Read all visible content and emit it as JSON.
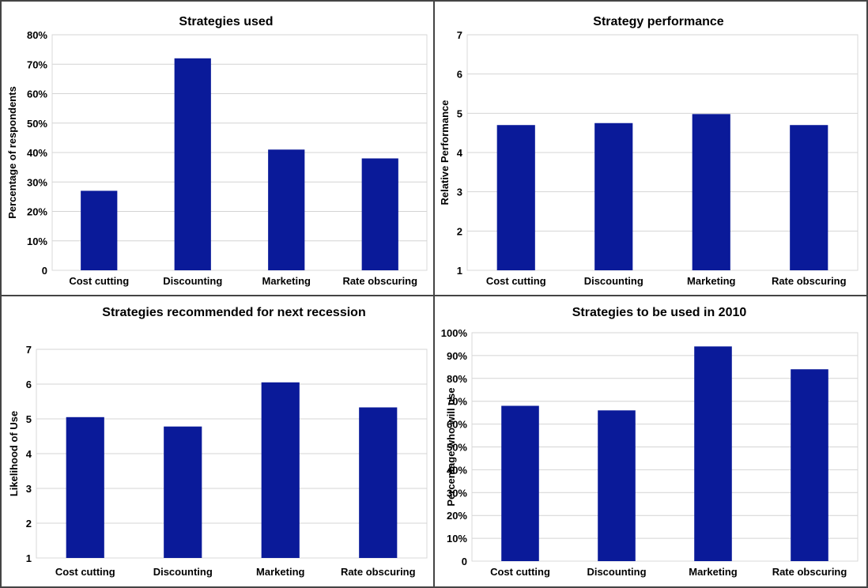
{
  "chart_data": [
    {
      "type": "bar",
      "title": "Strategies used",
      "ylabel": "Percentage of respondents",
      "xlabel": "",
      "categories": [
        "Cost cutting",
        "Discounting",
        "Marketing",
        "Rate obscuring"
      ],
      "values": [
        27,
        72,
        41,
        38
      ],
      "ylim": [
        0,
        80
      ],
      "yticks": [
        "0",
        "10%",
        "20%",
        "30%",
        "40%",
        "50%",
        "60%",
        "70%",
        "80%"
      ],
      "grid": true,
      "bar_color": "#0a1a99"
    },
    {
      "type": "bar",
      "title": "Strategy performance",
      "ylabel": "Relative Performance",
      "xlabel": "",
      "categories": [
        "Cost cutting",
        "Discounting",
        "Marketing",
        "Rate obscuring"
      ],
      "values": [
        4.7,
        4.75,
        4.98,
        4.7
      ],
      "ylim": [
        1,
        7
      ],
      "yticks": [
        "1",
        "2",
        "3",
        "4",
        "5",
        "6",
        "7"
      ],
      "grid": true,
      "bar_color": "#0a1a99"
    },
    {
      "type": "bar",
      "title": "Strategies recommended for next recession",
      "ylabel": "Likelihood of Use",
      "xlabel": "",
      "categories": [
        "Cost cutting",
        "Discounting",
        "Marketing",
        "Rate obscuring"
      ],
      "values": [
        5.05,
        4.78,
        6.05,
        5.33
      ],
      "ylim": [
        1,
        7
      ],
      "yticks": [
        "1",
        "2",
        "3",
        "4",
        "5",
        "6",
        "7"
      ],
      "grid": true,
      "bar_color": "#0a1a99"
    },
    {
      "type": "bar",
      "title": "Strategies to be used in 2010",
      "ylabel": "Percentage who will use",
      "xlabel": "",
      "categories": [
        "Cost cutting",
        "Discounting",
        "Marketing",
        "Rate obscuring"
      ],
      "values": [
        68,
        66,
        94,
        84
      ],
      "ylim": [
        0,
        100
      ],
      "yticks": [
        "0",
        "10%",
        "20%",
        "30%",
        "40%",
        "50%",
        "60%",
        "70%",
        "80%",
        "90%",
        "100%"
      ],
      "grid": true,
      "bar_color": "#0a1a99"
    }
  ]
}
